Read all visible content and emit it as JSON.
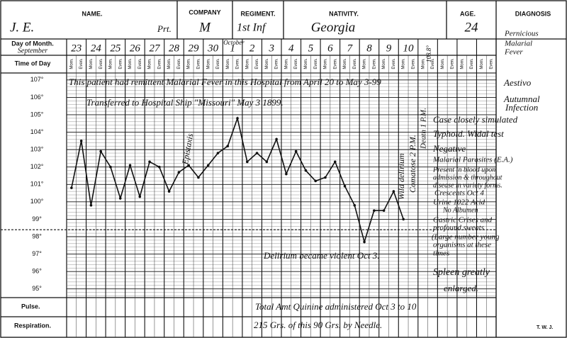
{
  "form": {
    "name_label": "NAME.",
    "name": "J. E.",
    "rank": "Prt.",
    "company_label": "COMPANY",
    "company": "M",
    "regiment_label": "REGIMENT.",
    "regiment": "1st Inf",
    "nativity_label": "NATIVITY.",
    "nativity": "Georgia",
    "age_label": "AGE.",
    "age": "24",
    "diagnosis_label": "DIAGNOSIS",
    "diagnosis": [
      "Pernicious",
      "Malarial",
      "Fever"
    ],
    "day_label": "Day of Month.",
    "month_label": "September",
    "next_month_label": "October",
    "time_label": "Time of Day",
    "pulse_label": "Pulse.",
    "respiration_label": "Respiration."
  },
  "chart_data": {
    "type": "line",
    "color": "#111",
    "days": [
      "23",
      "24",
      "25",
      "26",
      "27",
      "28",
      "29",
      "30",
      "1",
      "2",
      "3",
      "4",
      "5",
      "6",
      "7",
      "8",
      "9",
      "10",
      null,
      null,
      null,
      null
    ],
    "times": [
      "Morn.",
      "Even."
    ],
    "values": [
      100.8,
      103.5,
      99.8,
      102.9,
      102.0,
      100.2,
      102.1,
      100.3,
      102.3,
      102.0,
      100.6,
      101.7,
      102.1,
      101.4,
      102.1,
      102.8,
      103.2,
      104.8,
      102.3,
      102.8,
      102.3,
      103.6,
      101.6,
      102.9,
      101.8,
      101.2,
      101.4,
      102.3,
      100.9,
      99.8,
      97.7,
      99.5,
      99.5,
      100.6,
      99.0,
      null,
      null,
      null,
      null,
      null,
      null,
      null,
      null,
      null
    ],
    "ylim": [
      94.5,
      107.4
    ],
    "yticks": [
      {
        "value": 95,
        "label": "95°"
      },
      {
        "value": 96,
        "label": "96°"
      },
      {
        "value": 97,
        "label": "97°"
      },
      {
        "value": 98,
        "label": "98°"
      },
      {
        "value": 99,
        "label": "99°"
      },
      {
        "value": 100,
        "label": "100°"
      },
      {
        "value": 101,
        "label": "101°"
      },
      {
        "value": 102,
        "label": "102°"
      },
      {
        "value": 103,
        "label": "103°"
      },
      {
        "value": 104,
        "label": "104°"
      },
      {
        "value": 105,
        "label": "105°"
      },
      {
        "value": 106,
        "label": "106°"
      },
      {
        "value": 107,
        "label": "107°"
      }
    ],
    "minor_grid_per_degree": 5,
    "reference_line": 98.4,
    "grid": true,
    "annotations": [
      "This patient had remittent Malarial Fever in this Hospital from April 20 to May 3-99",
      "Transferred to Hospital Ship \"Missouri\" May 3 1899.",
      "Epistaxis",
      "Delirium became violent Oct 3.",
      "Wild delirium",
      "Comatose 2 P.M.",
      "Death 1 P.M.",
      "108.8°",
      "Total Amt Quinine administered Oct 3 to 10",
      "215 Grs. of this 90 Grs. by Needle.",
      "T. W. J.",
      "Aestivo",
      "Autumnal",
      "Infection",
      "Case closely simulated",
      "Typhoid. Widal test",
      "Negative",
      "Malarial Parasites (E.A.)",
      "Present in blood upon",
      "admission & throughout",
      "disease in variety forms.",
      "Crescents Oct 4",
      "Urine 1022 Acid",
      "No Albumen",
      "Gastric Crises and",
      "profound sweats",
      "(Large number young",
      "organisms at these",
      "times",
      "Spleen greatly",
      "enlarged."
    ]
  }
}
